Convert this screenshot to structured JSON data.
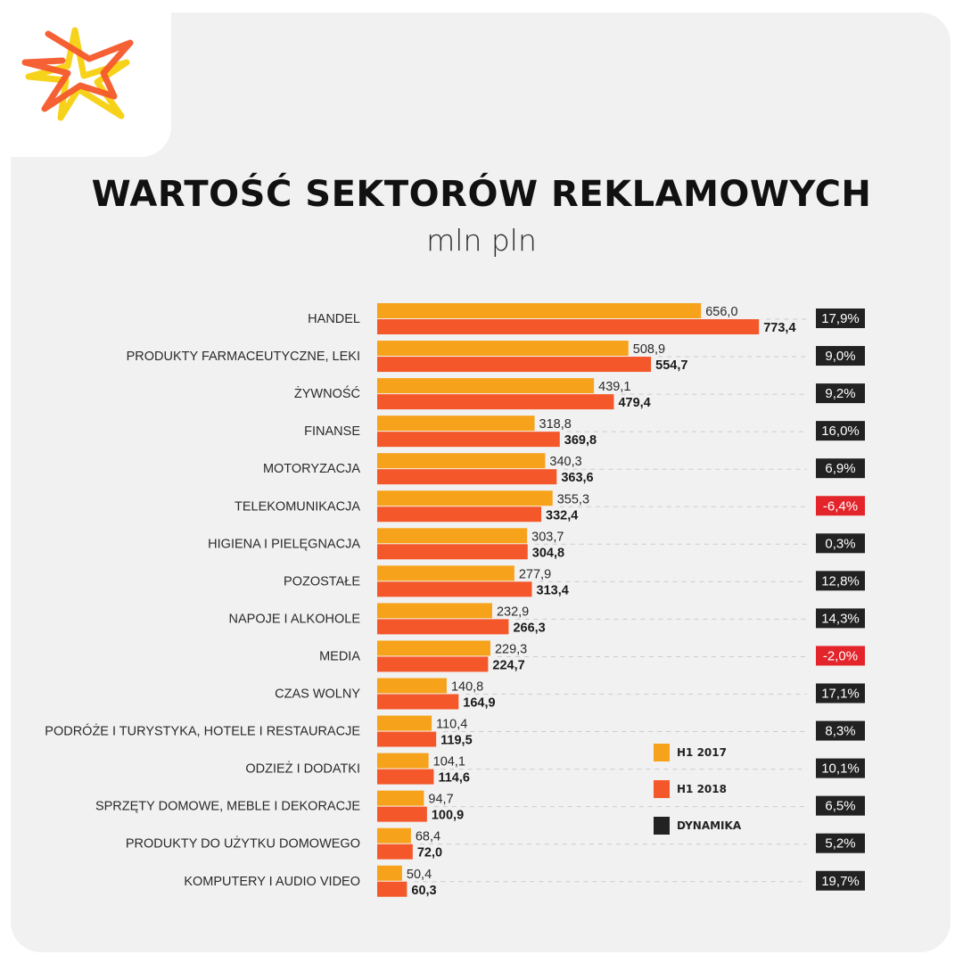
{
  "colors": {
    "h1_2017": "#f7a21b",
    "h1_2018": "#f4582a",
    "dynamika_positive": "#222222",
    "dynamika_negative": "#e3252b",
    "gridline": "#cccccc"
  },
  "header": {
    "logo_icon": "star-burst-logo-icon",
    "title": "WARTOŚĆ SEKTORÓW REKLAMOWYCH",
    "subtitle": "mln pln"
  },
  "legend": {
    "items": [
      {
        "label": "H1 2017",
        "color": "#f7a21b"
      },
      {
        "label": "H1 2018",
        "color": "#f4582a"
      },
      {
        "label": "DYNAMIKA",
        "color": "#222222"
      }
    ]
  },
  "chart_data": {
    "type": "bar",
    "orientation": "horizontal",
    "title": "WARTOŚĆ SEKTORÓW REKLAMOWYCH",
    "subtitle": "mln pln",
    "categories": [
      "HANDEL",
      "PRODUKTY FARMACEUTYCZNE, LEKI",
      "ŻYWNOŚĆ",
      "FINANSE",
      "MOTORYZACJA",
      "TELEKOMUNIKACJA",
      "HIGIENA I PIELĘGNACJA",
      "POZOSTAŁE",
      "NAPOJE I ALKOHOLE",
      "MEDIA",
      "CZAS WOLNY",
      "PODRÓŻE I TURYSTYKA, HOTELE I RESTAURACJE",
      "ODZIEŻ I DODATKI",
      "SPRZĘTY DOMOWE, MEBLE I DEKORACJE",
      "PRODUKTY DO UŻYTKU DOMOWEGO",
      "KOMPUTERY I AUDIO VIDEO"
    ],
    "series": [
      {
        "name": "H1 2017",
        "values": [
          656.0,
          508.9,
          439.1,
          318.8,
          340.3,
          355.3,
          303.7,
          277.9,
          232.9,
          229.3,
          140.8,
          110.4,
          104.1,
          94.7,
          68.4,
          50.4
        ],
        "labels": [
          "656,0",
          "508,9",
          "439,1",
          "318,8",
          "340,3",
          "355,3",
          "303,7",
          "277,9",
          "232,9",
          "229,3",
          "140,8",
          "110,4",
          "104,1",
          "94,7",
          "68,4",
          "50,4"
        ]
      },
      {
        "name": "H1 2018",
        "values": [
          773.4,
          554.7,
          479.4,
          369.8,
          363.6,
          332.4,
          304.8,
          313.4,
          266.3,
          224.7,
          164.9,
          119.5,
          114.6,
          100.9,
          72.0,
          60.3
        ],
        "labels": [
          "773,4",
          "554,7",
          "479,4",
          "369,8",
          "363,6",
          "332,4",
          "304,8",
          "313,4",
          "266,3",
          "224,7",
          "164,9",
          "119,5",
          "114,6",
          "100,9",
          "72,0",
          "60,3"
        ]
      }
    ],
    "dynamika": {
      "name": "DYNAMIKA",
      "values": [
        17.9,
        9.0,
        9.2,
        16.0,
        6.9,
        -6.4,
        0.3,
        12.8,
        14.3,
        -2.0,
        17.1,
        8.3,
        10.1,
        6.5,
        5.2,
        19.7
      ],
      "labels": [
        "17,9%",
        "9,0%",
        "9,2%",
        "16,0%",
        "6,9%",
        "-6,4%",
        "0,3%",
        "12,8%",
        "14,3%",
        "-2,0%",
        "17,1%",
        "8,3%",
        "10,1%",
        "6,5%",
        "5,2%",
        "19,7%"
      ]
    },
    "xlim": [
      0,
      800
    ],
    "grid": false,
    "legend_position": "bottom-right"
  }
}
